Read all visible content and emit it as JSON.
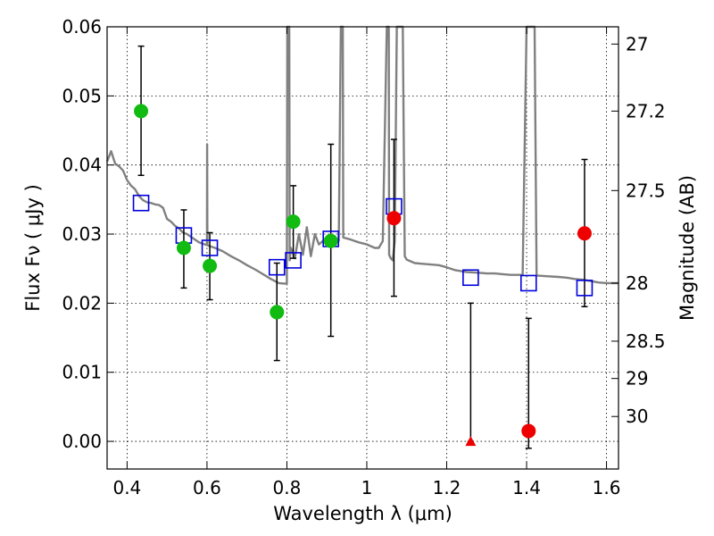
{
  "chart_data": {
    "type": "scatter",
    "xlabel": "Wavelength  λ (μm)",
    "ylabel": "Flux  Fν  ( μJy )",
    "y2label": "Magnitude (AB)",
    "xlim": [
      0.35,
      1.63
    ],
    "ylim": [
      -0.004,
      0.06
    ],
    "xticks": [
      0.4,
      0.6,
      0.8,
      1.0,
      1.2,
      1.4,
      1.6
    ],
    "xtick_labels": [
      "0.4",
      "0.6",
      "0.8",
      "1",
      "1.2",
      "1.4",
      "1.6"
    ],
    "yticks": [
      0.0,
      0.01,
      0.02,
      0.03,
      0.04,
      0.05,
      0.06
    ],
    "ytick_labels": [
      "0.00",
      "0.01",
      "0.02",
      "0.03",
      "0.04",
      "0.05",
      "0.06"
    ],
    "y2ticks": [
      {
        "label": "27",
        "flux": 0.0575
      },
      {
        "label": "27.2",
        "flux": 0.0478
      },
      {
        "label": "27.5",
        "flux": 0.0363
      },
      {
        "label": "28",
        "flux": 0.0229
      },
      {
        "label": "28.5",
        "flux": 0.0145
      },
      {
        "label": "29",
        "flux": 0.0091
      },
      {
        "label": "30",
        "flux": 0.0036
      }
    ],
    "grid": true,
    "colors": {
      "sed": "#808080",
      "model": "#0000dd",
      "optical": "#11bb11",
      "nir": "#ee0000",
      "errorbar": "#000000"
    },
    "sed_curve": [
      [
        0.35,
        0.0405
      ],
      [
        0.36,
        0.042
      ],
      [
        0.37,
        0.0402
      ],
      [
        0.38,
        0.0398
      ],
      [
        0.39,
        0.0392
      ],
      [
        0.4,
        0.0378
      ],
      [
        0.41,
        0.037
      ],
      [
        0.42,
        0.0365
      ],
      [
        0.43,
        0.0355
      ],
      [
        0.44,
        0.0349
      ],
      [
        0.45,
        0.0346
      ],
      [
        0.46,
        0.0345
      ],
      [
        0.47,
        0.0343
      ],
      [
        0.48,
        0.0342
      ],
      [
        0.49,
        0.0338
      ],
      [
        0.5,
        0.0322
      ],
      [
        0.51,
        0.0318
      ],
      [
        0.52,
        0.0312
      ],
      [
        0.53,
        0.0308
      ],
      [
        0.54,
        0.0302
      ],
      [
        0.55,
        0.03
      ],
      [
        0.56,
        0.0296
      ],
      [
        0.57,
        0.0292
      ],
      [
        0.58,
        0.0288
      ],
      [
        0.59,
        0.0286
      ],
      [
        0.6,
        0.0284
      ],
      [
        0.6005,
        0.043
      ],
      [
        0.601,
        0.0284
      ],
      [
        0.61,
        0.0282
      ],
      [
        0.62,
        0.028
      ],
      [
        0.64,
        0.0275
      ],
      [
        0.66,
        0.0268
      ],
      [
        0.68,
        0.0262
      ],
      [
        0.7,
        0.0255
      ],
      [
        0.72,
        0.0249
      ],
      [
        0.74,
        0.0242
      ],
      [
        0.76,
        0.0235
      ],
      [
        0.78,
        0.0229
      ],
      [
        0.8,
        0.0228
      ],
      [
        0.801,
        0.06
      ],
      [
        0.806,
        0.06
      ],
      [
        0.807,
        0.0262
      ],
      [
        0.81,
        0.028
      ],
      [
        0.82,
        0.0265
      ],
      [
        0.83,
        0.03
      ],
      [
        0.84,
        0.027
      ],
      [
        0.85,
        0.031
      ],
      [
        0.86,
        0.0268
      ],
      [
        0.87,
        0.03
      ],
      [
        0.88,
        0.0285
      ],
      [
        0.89,
        0.029
      ],
      [
        0.9,
        0.0292
      ],
      [
        0.91,
        0.029
      ],
      [
        0.92,
        0.0288
      ],
      [
        0.93,
        0.029
      ],
      [
        0.935,
        0.06
      ],
      [
        0.94,
        0.06
      ],
      [
        0.941,
        0.0295
      ],
      [
        0.96,
        0.0292
      ],
      [
        0.97,
        0.029
      ],
      [
        0.98,
        0.0288
      ],
      [
        1.0,
        0.0285
      ],
      [
        1.02,
        0.028
      ],
      [
        1.03,
        0.028
      ],
      [
        1.04,
        0.029
      ],
      [
        1.05,
        0.06
      ],
      [
        1.055,
        0.06
      ],
      [
        1.056,
        0.027
      ],
      [
        1.06,
        0.0265
      ],
      [
        1.065,
        0.0262
      ],
      [
        1.07,
        0.029
      ],
      [
        1.075,
        0.06
      ],
      [
        1.09,
        0.06
      ],
      [
        1.095,
        0.0268
      ],
      [
        1.1,
        0.0263
      ],
      [
        1.12,
        0.0258
      ],
      [
        1.14,
        0.0257
      ],
      [
        1.16,
        0.0256
      ],
      [
        1.18,
        0.0255
      ],
      [
        1.2,
        0.0252
      ],
      [
        1.22,
        0.0248
      ],
      [
        1.25,
        0.0245
      ],
      [
        1.28,
        0.0244
      ],
      [
        1.3,
        0.0243
      ],
      [
        1.32,
        0.0243
      ],
      [
        1.34,
        0.0242
      ],
      [
        1.36,
        0.0241
      ],
      [
        1.38,
        0.0241
      ],
      [
        1.39,
        0.0241
      ],
      [
        1.4,
        0.06
      ],
      [
        1.42,
        0.06
      ],
      [
        1.425,
        0.024
      ],
      [
        1.45,
        0.0239
      ],
      [
        1.48,
        0.0238
      ],
      [
        1.5,
        0.0237
      ],
      [
        1.52,
        0.0235
      ],
      [
        1.54,
        0.0234
      ],
      [
        1.56,
        0.0232
      ],
      [
        1.58,
        0.023
      ],
      [
        1.6,
        0.0229
      ],
      [
        1.63,
        0.0229
      ]
    ],
    "model_points": [
      {
        "x": 0.435,
        "y": 0.0345
      },
      {
        "x": 0.542,
        "y": 0.0298
      },
      {
        "x": 0.607,
        "y": 0.028
      },
      {
        "x": 0.775,
        "y": 0.0252
      },
      {
        "x": 0.816,
        "y": 0.0262
      },
      {
        "x": 0.91,
        "y": 0.0293
      },
      {
        "x": 1.068,
        "y": 0.034
      },
      {
        "x": 1.26,
        "y": 0.0237
      },
      {
        "x": 1.405,
        "y": 0.0229
      },
      {
        "x": 1.545,
        "y": 0.0222
      }
    ],
    "optical_points": [
      {
        "x": 0.435,
        "y": 0.0478,
        "lo": 0.0385,
        "hi": 0.0572
      },
      {
        "x": 0.542,
        "y": 0.028,
        "lo": 0.0222,
        "hi": 0.0335
      },
      {
        "x": 0.607,
        "y": 0.0254,
        "lo": 0.0205,
        "hi": 0.0302
      },
      {
        "x": 0.775,
        "y": 0.0187,
        "lo": 0.0117,
        "hi": 0.0258
      },
      {
        "x": 0.816,
        "y": 0.0318,
        "lo": 0.0265,
        "hi": 0.037
      },
      {
        "x": 0.91,
        "y": 0.029,
        "lo": 0.0152,
        "hi": 0.043
      }
    ],
    "nir_points": [
      {
        "x": 1.068,
        "y": 0.0323,
        "lo": 0.021,
        "hi": 0.0437,
        "marker": "circle"
      },
      {
        "x": 1.26,
        "y": 0.0,
        "lo": 0.0,
        "hi": 0.02,
        "marker": "triangle"
      },
      {
        "x": 1.405,
        "y": 0.0015,
        "lo": -0.001,
        "hi": 0.0178,
        "marker": "circle"
      },
      {
        "x": 1.545,
        "y": 0.0301,
        "lo": 0.0195,
        "hi": 0.0408,
        "marker": "circle"
      }
    ]
  }
}
